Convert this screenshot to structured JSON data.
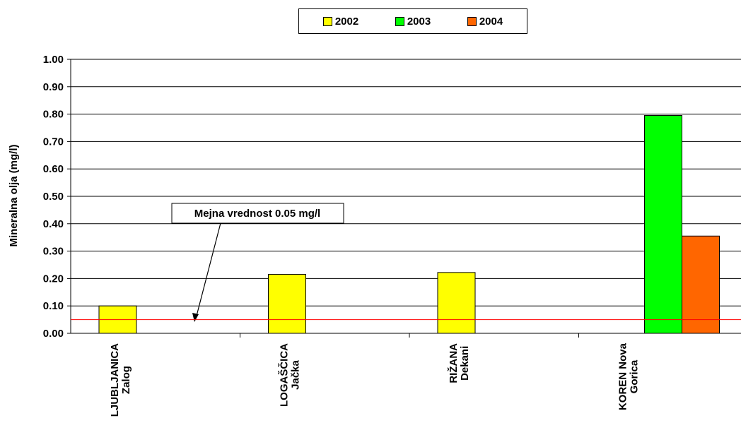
{
  "chart_data": {
    "type": "bar",
    "ylabel": "Mineralna olja (mg/l)",
    "ylim": [
      0,
      1.0
    ],
    "yticks": [
      "0.00",
      "0.10",
      "0.20",
      "0.30",
      "0.40",
      "0.50",
      "0.60",
      "0.70",
      "0.80",
      "0.90",
      "1.00"
    ],
    "grid": true,
    "legend_position": "top-center",
    "categories": [
      {
        "line1": "LJUBLJANICA",
        "line2": "Zalog"
      },
      {
        "line1": "LOGAŠČICA",
        "line2": "Jačka"
      },
      {
        "line1": "RIŽANA",
        "line2": "Dekani"
      },
      {
        "line1": "KOREN Nova",
        "line2": "Gorica"
      }
    ],
    "series": [
      {
        "name": "2002",
        "color": "#ffff00",
        "values": [
          0.1,
          0.215,
          0.222,
          null
        ]
      },
      {
        "name": "2003",
        "color": "#00ff00",
        "values": [
          null,
          null,
          null,
          0.795
        ]
      },
      {
        "name": "2004",
        "color": "#ff6600",
        "values": [
          null,
          null,
          null,
          0.355
        ]
      }
    ],
    "reference_line": {
      "value": 0.05,
      "color": "#ff0000"
    },
    "annotation": {
      "text": "Mejna vrednost 0.05 mg/l"
    }
  }
}
